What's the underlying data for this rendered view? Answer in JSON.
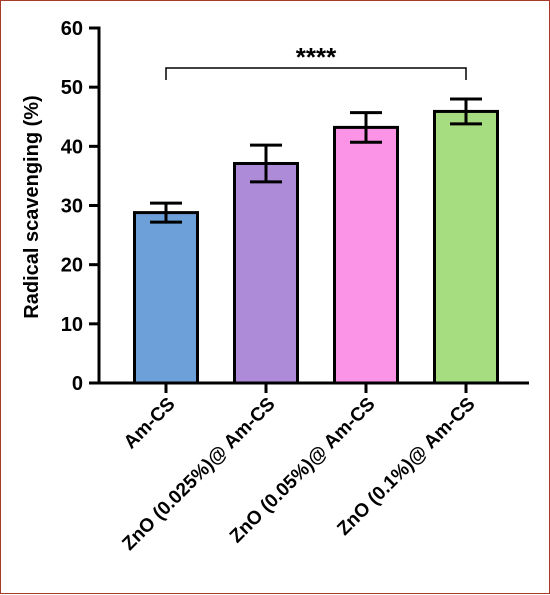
{
  "chart_data": {
    "type": "bar",
    "title": "",
    "xlabel": "",
    "ylabel": "Radical scavenging (%)",
    "ylim": [
      0,
      60
    ],
    "yticks": [
      0,
      10,
      20,
      30,
      40,
      50,
      60
    ],
    "grid": false,
    "legend": "none",
    "categories": [
      "Am-CS",
      "ZnO (0.025%)@ Am-CS",
      "ZnO (0.05%)@ Am-CS",
      "ZnO (0.1%)@ Am-CS"
    ],
    "values": [
      28.8,
      37.1,
      43.2,
      45.9
    ],
    "errors": [
      1.6,
      3.1,
      2.5,
      2.1
    ],
    "colors": [
      "#6d9fd9",
      "#ad8bd9",
      "#fb93e6",
      "#a5dd80"
    ],
    "significance": {
      "from": "Am-CS",
      "to": "ZnO (0.1%)@ Am-CS",
      "label": "****"
    }
  }
}
